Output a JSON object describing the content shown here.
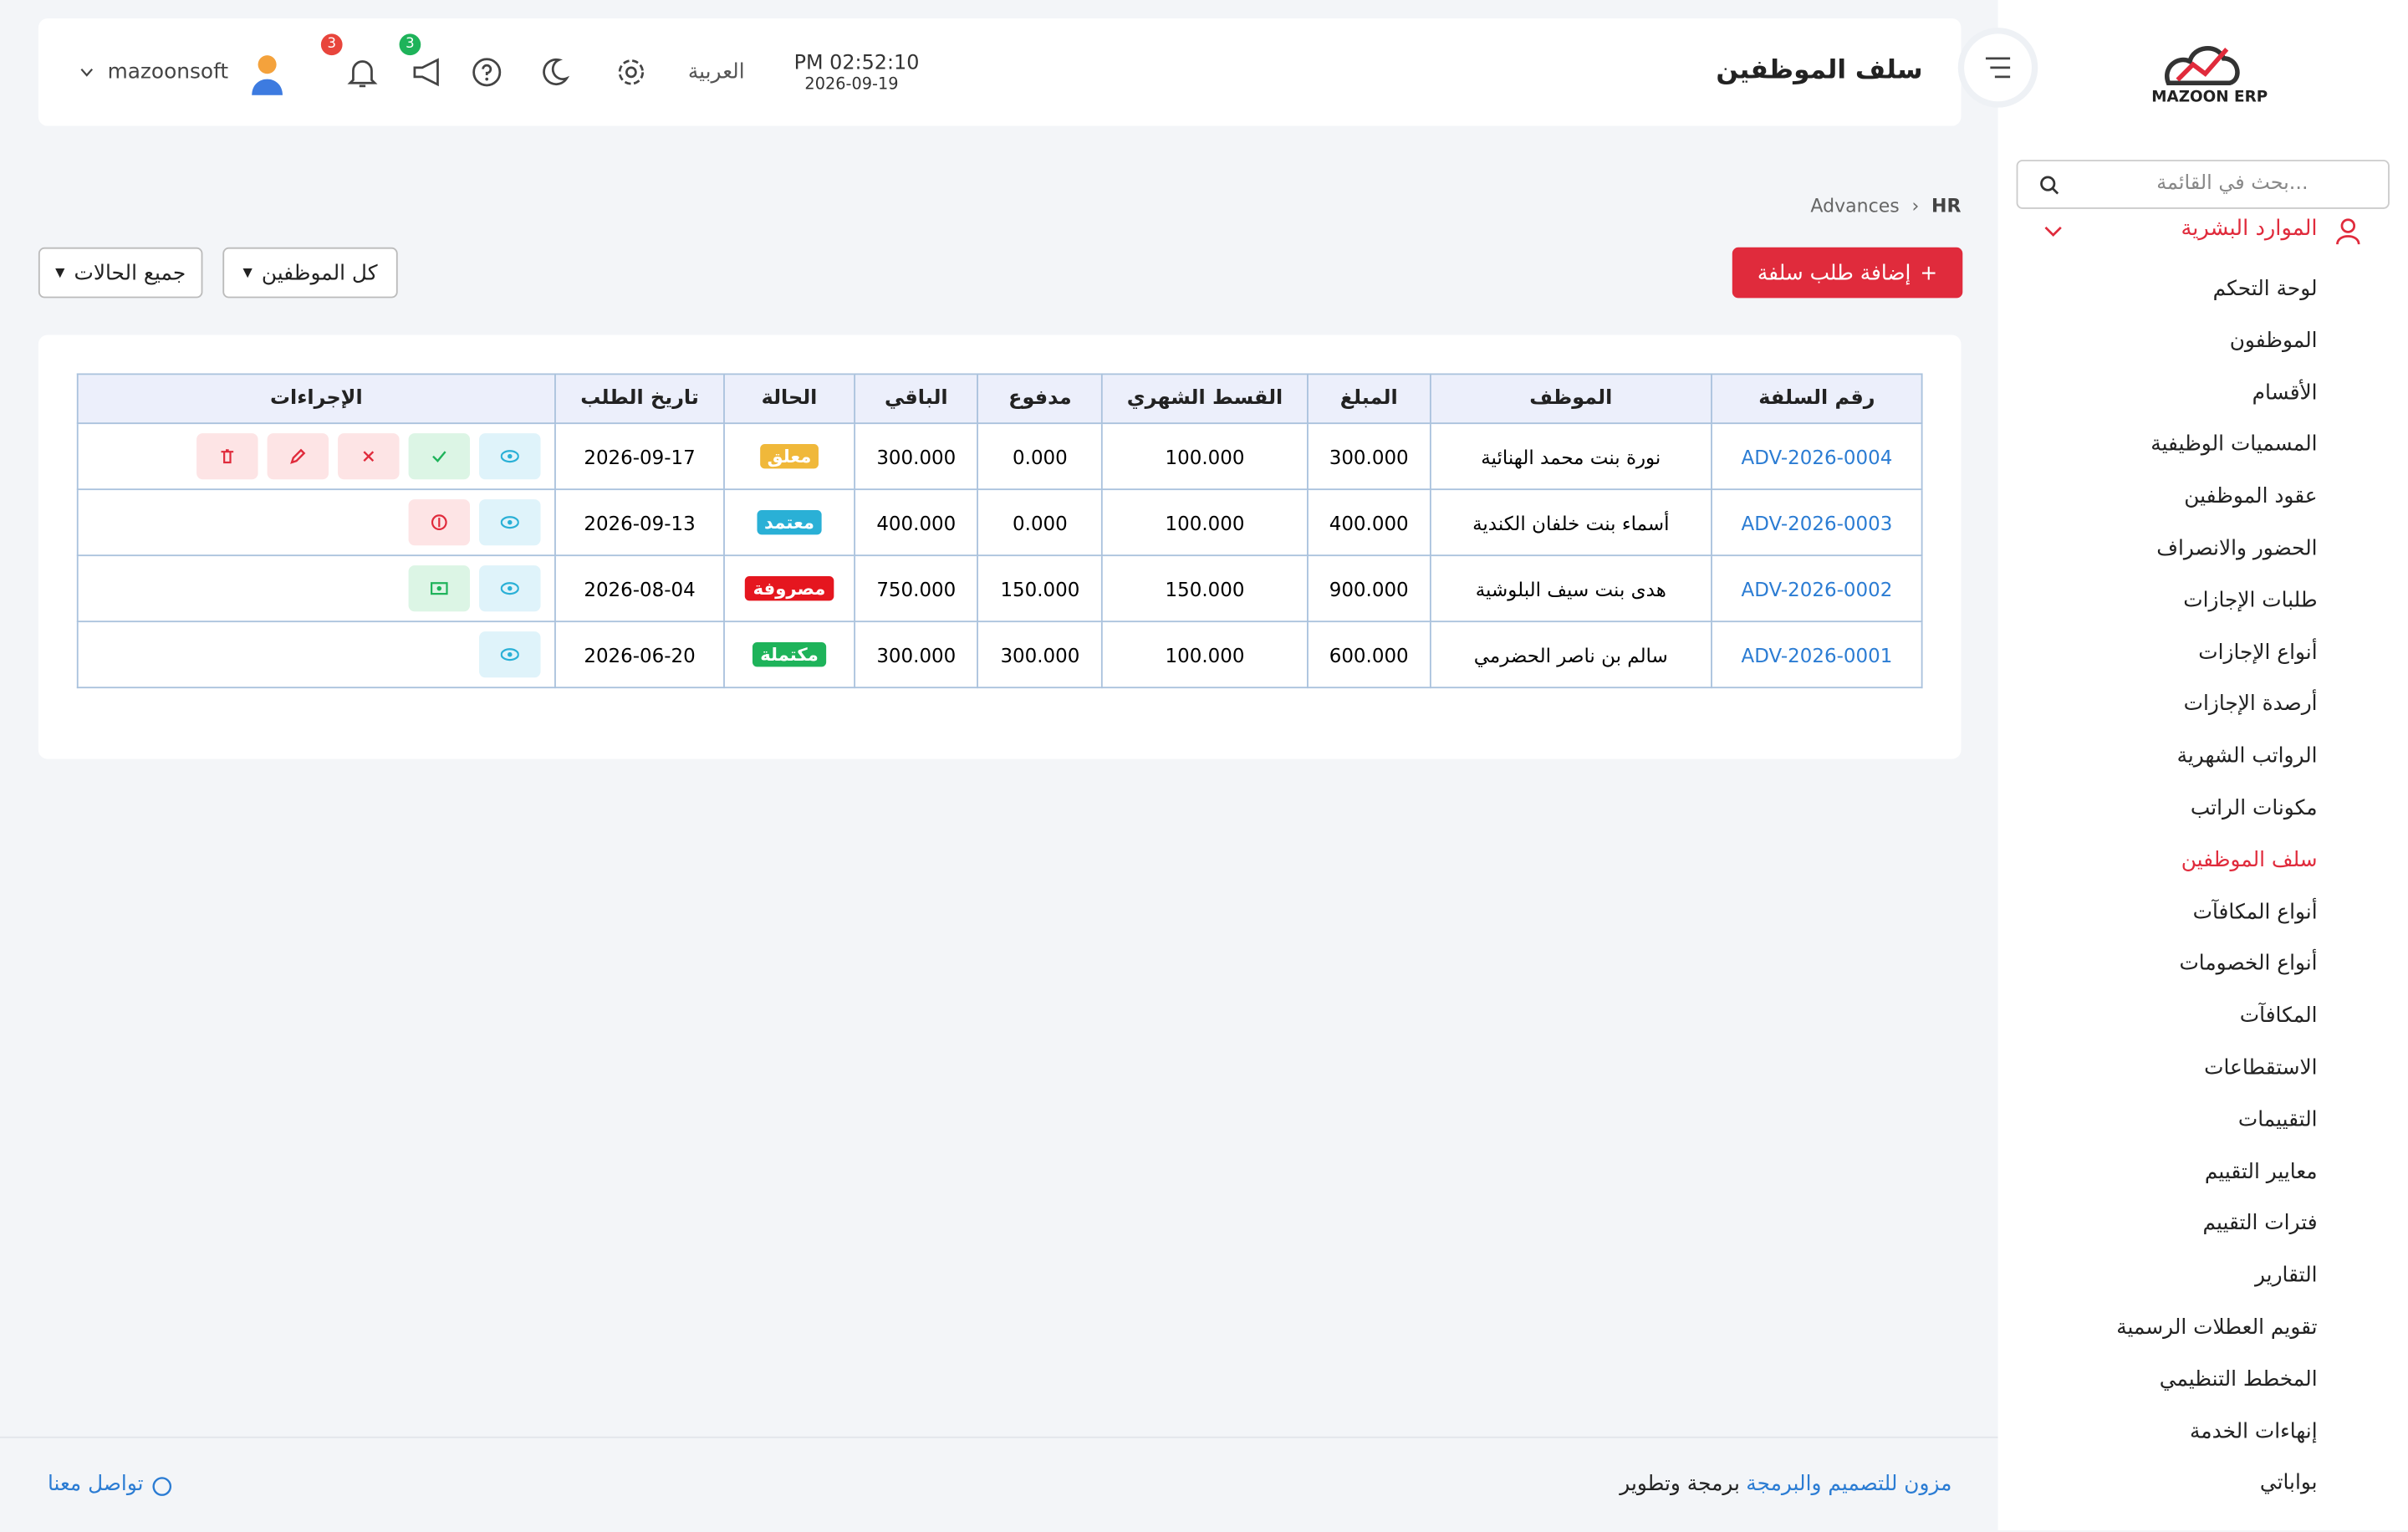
{
  "header": {
    "title": "سلف الموظفين",
    "time": "PM 02:52:10",
    "date": "2026-09-19",
    "language": "العربية",
    "user": "mazoonsoft",
    "notification_badge": "3",
    "announcement_badge": "3"
  },
  "sidebar": {
    "logo": "MAZOON ERP",
    "search_placeholder": "بحث في القائمة...",
    "section": "الموارد البشرية",
    "items": [
      "لوحة التحكم",
      "الموظفون",
      "الأقسام",
      "المسميات الوظيفية",
      "عقود الموظفين",
      "الحضور والانصراف",
      "طلبات الإجازات",
      "أنواع الإجازات",
      "أرصدة الإجازات",
      "الرواتب الشهرية",
      "مكونات الراتب",
      "سلف الموظفين",
      "أنواع المكافآت",
      "أنواع الخصومات",
      "المكافآت",
      "الاستقطاعات",
      "التقييمات",
      "معايير التقييم",
      "فترات التقييم",
      "التقارير",
      "تقويم العطلات الرسمية",
      "المخطط التنظيمي",
      "إنهاءات الخدمة",
      "بواباتي"
    ],
    "active_item": 11
  },
  "breadcrumb": [
    "HR",
    "Advances"
  ],
  "toolbar": {
    "add_button": "إضافة طلب سلفة",
    "filters": [
      "كل الموظفين",
      "جميع الحالات"
    ]
  },
  "table": {
    "columns": [
      "رقم السلفة",
      "الموظف",
      "المبلغ",
      "القسط الشهري",
      "مدفوع",
      "الباقي",
      "الحالة",
      "تاريخ الطلب",
      "الإجراءات"
    ],
    "rows": [
      [
        "ADV-2026-0004",
        "نورة بنت محمد الهنائية",
        "300.000",
        "100.000",
        "0.000",
        "300.000",
        "معلق",
        "2026-09-17"
      ],
      [
        "ADV-2026-0003",
        "أسماء بنت خلفان الكندية",
        "400.000",
        "100.000",
        "0.000",
        "400.000",
        "معتمد",
        "2026-09-13"
      ],
      [
        "ADV-2026-0002",
        "هدى بنت سيف البلوشية",
        "900.000",
        "150.000",
        "150.000",
        "750.000",
        "مصروفة",
        "2026-08-04"
      ],
      [
        "ADV-2026-0001",
        "سالم بن ناصر الحضرمي",
        "600.000",
        "100.000",
        "300.000",
        "300.000",
        "مكتملة",
        "2026-06-20"
      ]
    ]
  },
  "footer": {
    "credit_prefix": "برمجة وتطوير",
    "credit_link": "مزون للتصميم والبرمجة",
    "contact": "تواصل معنا"
  }
}
